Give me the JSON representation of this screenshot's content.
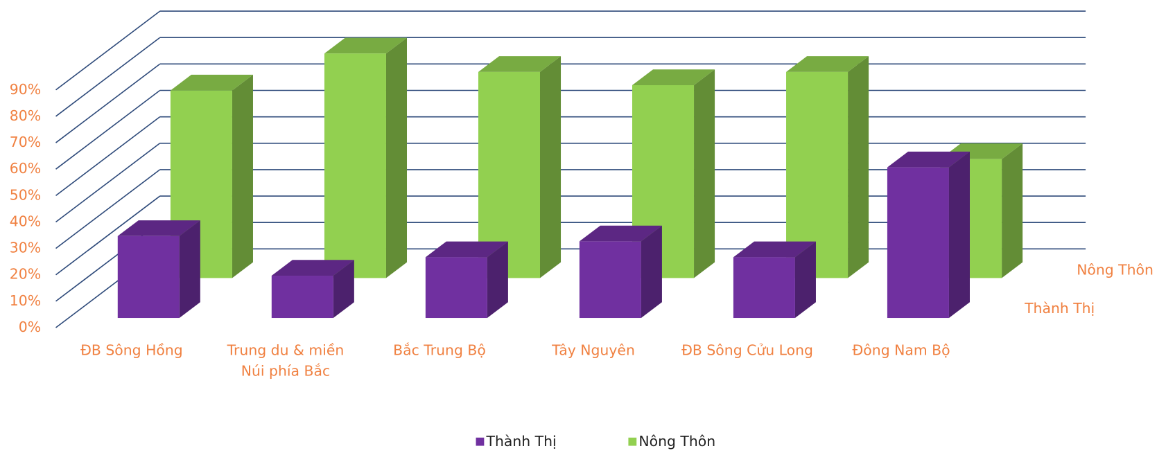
{
  "chart_data": {
    "type": "bar3d",
    "categories": [
      "ĐB Sông Hồng",
      "Trung du & miền Núi phía Bắc",
      "Bắc Trung Bộ",
      "Tây Nguyên",
      "ĐB Sông Cửu Long",
      "Đông Nam Bộ"
    ],
    "series": [
      {
        "name": "Thành Thị",
        "color": "#7030a0",
        "values": [
          31,
          16,
          23,
          29,
          23,
          57
        ]
      },
      {
        "name": "Nông Thôn",
        "color": "#92d050",
        "values": [
          71,
          85,
          78,
          73,
          78,
          45
        ]
      }
    ],
    "ylim": [
      0,
      90
    ],
    "yticks": [
      {
        "value": 0,
        "label": "0%"
      },
      {
        "value": 10,
        "label": "10%"
      },
      {
        "value": 20,
        "label": "20%"
      },
      {
        "value": 30,
        "label": "30%"
      },
      {
        "value": 40,
        "label": "40%"
      },
      {
        "value": 50,
        "label": "50%"
      },
      {
        "value": 60,
        "label": "60%"
      },
      {
        "value": 70,
        "label": "70%"
      },
      {
        "value": 80,
        "label": "80%"
      },
      {
        "value": 90,
        "label": "90%"
      }
    ],
    "grid": true
  }
}
